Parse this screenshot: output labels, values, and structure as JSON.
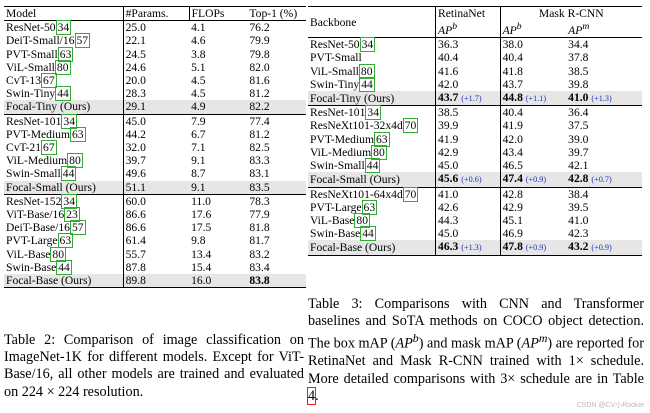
{
  "table2": {
    "headers": [
      "Model",
      "#Params.",
      "FLOPs",
      "Top-1 (%)"
    ],
    "groups": [
      [
        {
          "name": "ResNet-50",
          "ref": "34",
          "params": "25.0",
          "flops": "4.1",
          "top1": "76.2"
        },
        {
          "name": "DeiT-Small/16",
          "ref": "57",
          "params": "22.1",
          "flops": "4.6",
          "top1": "79.9"
        },
        {
          "name": "PVT-Small",
          "ref": "63",
          "params": "24.5",
          "flops": "3.8",
          "top1": "79.8"
        },
        {
          "name": "ViL-Small",
          "ref": "80",
          "params": "24.6",
          "flops": "5.1",
          "top1": "82.0"
        },
        {
          "name": "CvT-13",
          "ref": "67",
          "params": "20.0",
          "flops": "4.5",
          "top1": "81.6"
        },
        {
          "name": "Swin-Tiny",
          "ref": "44",
          "params": "28.3",
          "flops": "4.5",
          "top1": "81.2"
        },
        {
          "name": "Focal-Tiny (Ours)",
          "ref": "",
          "params": "29.1",
          "flops": "4.9",
          "top1": "82.2",
          "ours": true
        }
      ],
      [
        {
          "name": "ResNet-101",
          "ref": "34",
          "params": "45.0",
          "flops": "7.9",
          "top1": "77.4"
        },
        {
          "name": "PVT-Medium",
          "ref": "63",
          "params": "44.2",
          "flops": "6.7",
          "top1": "81.2"
        },
        {
          "name": "CvT-21",
          "ref": "67",
          "params": "32.0",
          "flops": "7.1",
          "top1": "82.5"
        },
        {
          "name": "ViL-Medium",
          "ref": "80",
          "params": "39.7",
          "flops": "9.1",
          "top1": "83.3"
        },
        {
          "name": "Swin-Small",
          "ref": "44",
          "params": "49.6",
          "flops": "8.7",
          "top1": "83.1"
        },
        {
          "name": "Focal-Small (Ours)",
          "ref": "",
          "params": "51.1",
          "flops": "9.1",
          "top1": "83.5",
          "ours": true
        }
      ],
      [
        {
          "name": "ResNet-152",
          "ref": "34",
          "params": "60.0",
          "flops": "11.0",
          "top1": "78.3"
        },
        {
          "name": "ViT-Base/16",
          "ref": "23",
          "params": "86.6",
          "flops": "17.6",
          "top1": "77.9"
        },
        {
          "name": "DeiT-Base/16",
          "ref": "57",
          "params": "86.6",
          "flops": "17.5",
          "top1": "81.8"
        },
        {
          "name": "PVT-Large",
          "ref": "63",
          "params": "61.4",
          "flops": "9.8",
          "top1": "81.7"
        },
        {
          "name": "ViL-Base",
          "ref": "80",
          "params": "55.7",
          "flops": "13.4",
          "top1": "83.2"
        },
        {
          "name": "Swin-Base",
          "ref": "44",
          "params": "87.8",
          "flops": "15.4",
          "top1": "83.4"
        },
        {
          "name": "Focal-Base (Ours)",
          "ref": "",
          "params": "89.8",
          "flops": "16.0",
          "top1": "83.8",
          "ours": true,
          "bold_top1": true
        }
      ]
    ]
  },
  "table3": {
    "headers": {
      "backbone": "Backbone",
      "retinanet": "RetinaNet",
      "maskrcnn": "Mask R-CNN",
      "ap_b": "AP",
      "ap_b_sup": "b",
      "ap_m": "AP",
      "ap_m_sup": "m"
    },
    "groups": [
      [
        {
          "name": "ResNet-50",
          "ref": "34",
          "ret": "36.3",
          "mb": "38.0",
          "mm": "34.4"
        },
        {
          "name": "PVT-Small",
          "ref": "",
          "ret": "40.4",
          "mb": "40.4",
          "mm": "37.8"
        },
        {
          "name": "ViL-Small",
          "ref": "80",
          "ret": "41.6",
          "mb": "41.8",
          "mm": "38.5"
        },
        {
          "name": "Swin-Tiny",
          "ref": "44",
          "ret": "42.0",
          "mb": "43.7",
          "mm": "39.8"
        },
        {
          "name": "Focal-Tiny (Ours)",
          "ref": "",
          "ret": "43.7",
          "ret_d": "(+1.7)",
          "mb": "44.8",
          "mb_d": "(+1.1)",
          "mm": "41.0",
          "mm_d": "(+1.3)",
          "ours": true
        }
      ],
      [
        {
          "name": "ResNet-101",
          "ref": "34",
          "ret": "38.5",
          "mb": "40.4",
          "mm": "36.4"
        },
        {
          "name": "ResNeXt101-32x4d",
          "ref": "70",
          "ret": "39.9",
          "mb": "41.9",
          "mm": "37.5"
        },
        {
          "name": "PVT-Medium",
          "ref": "63",
          "ret": "41.9",
          "mb": "42.0",
          "mm": "39.0"
        },
        {
          "name": "ViL-Medium",
          "ref": "80",
          "ret": "42.9",
          "mb": "43.4",
          "mm": "39.7"
        },
        {
          "name": "Swin-Small",
          "ref": "44",
          "ret": "45.0",
          "mb": "46.5",
          "mm": "42.1"
        },
        {
          "name": "Focal-Small (Ours)",
          "ref": "",
          "ret": "45.6",
          "ret_d": "(+0.6)",
          "mb": "47.4",
          "mb_d": "(+0.9)",
          "mm": "42.8",
          "mm_d": "(+0.7)",
          "ours": true
        }
      ],
      [
        {
          "name": "ResNeXt101-64x4d",
          "ref": "70",
          "ret": "41.0",
          "mb": "42.8",
          "mm": "38.4"
        },
        {
          "name": "PVT-Large",
          "ref": "63",
          "ret": "42.6",
          "mb": "42.9",
          "mm": "39.5"
        },
        {
          "name": "ViL-Base",
          "ref": "80",
          "ret": "44.3",
          "mb": "45.1",
          "mm": "41.0"
        },
        {
          "name": "Swin-Base",
          "ref": "44",
          "ret": "45.0",
          "mb": "46.9",
          "mm": "42.3"
        },
        {
          "name": "Focal-Base (Ours)",
          "ref": "",
          "ret": "46.3",
          "ret_d": "(+1.3)",
          "mb": "47.8",
          "mb_d": "(+0.9)",
          "mm": "43.2",
          "mm_d": "(+0.9)",
          "ours": true
        }
      ]
    ]
  },
  "caption2": "Table 2: Comparison of image classification on ImageNet-1K for different models. Except for ViT-Base/16, all other models are trained and evaluated on 224 × 224 resolution.",
  "caption3": {
    "part1": "Table 3: Comparisons with CNN and Transformer baselines and SoTA methods on COCO object detection. The box mAP (",
    "apb": "AP",
    "apb_sup": "b",
    "part2": ") and mask mAP (",
    "apm": "AP",
    "apm_sup": "m",
    "part3": ") are reported for RetinaNet and Mask R-CNN trained with 1× schedule. More detailed comparisons with 3× schedule are in Table ",
    "ref": "4",
    "part4": "."
  },
  "watermark": "CSDN @CV小Rookie"
}
